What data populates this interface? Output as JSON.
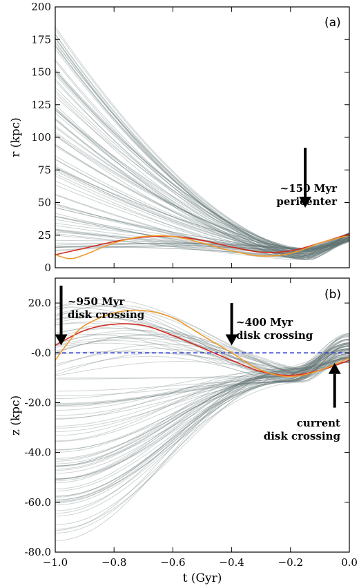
{
  "chart_data": [
    {
      "panel": "(a)",
      "type": "line",
      "xlim": [
        -1.0,
        0.0
      ],
      "ylim": [
        0,
        200
      ],
      "ylabel": "r (kpc)",
      "xticks": [
        -1.0,
        -0.8,
        -0.6,
        -0.4,
        -0.2,
        0.0
      ],
      "yticks": [
        0,
        25,
        50,
        75,
        100,
        125,
        150,
        175,
        200
      ],
      "ytick_labels": [
        "0",
        "25",
        "50",
        "75",
        "100",
        "125",
        "150",
        "175",
        "200"
      ],
      "colors": {
        "ensemble": "#5f7272",
        "red": "#d42a1e",
        "orange": "#ef9a2a"
      },
      "ensemble": {
        "count": 90,
        "r_at_start_range": [
          9,
          185
        ],
        "r_min_time": -0.15,
        "r_min_range": [
          6,
          15
        ],
        "r_at_end_range": [
          20,
          27
        ]
      },
      "series": [
        {
          "color": "red",
          "x": [
            -1.0,
            -0.9,
            -0.8,
            -0.7,
            -0.6,
            -0.5,
            -0.4,
            -0.3,
            -0.2,
            -0.1,
            0.0
          ],
          "y": [
            10,
            15,
            20,
            23.5,
            24,
            21,
            16,
            12,
            13,
            19,
            26
          ]
        },
        {
          "color": "orange",
          "x": [
            -1.0,
            -0.95,
            -0.9,
            -0.8,
            -0.7,
            -0.6,
            -0.5,
            -0.4,
            -0.3,
            -0.2,
            -0.1,
            0.0
          ],
          "y": [
            10,
            7,
            10,
            19,
            24,
            24,
            19,
            13,
            9,
            11,
            19,
            25
          ]
        }
      ],
      "annotations": [
        {
          "text_lines": [
            "~150 Myr",
            "pericenter"
          ],
          "arrow_x": -0.15,
          "arrow_from_y": 92,
          "arrow_to_y": 46
        }
      ]
    },
    {
      "panel": "(b)",
      "type": "line",
      "xlim": [
        -1.0,
        0.0
      ],
      "ylim": [
        -80,
        30
      ],
      "xlabel": "t (Gyr)",
      "ylabel": "z (kpc)",
      "xticks": [
        -1.0,
        -0.8,
        -0.6,
        -0.4,
        -0.2,
        0.0
      ],
      "xtick_labels": [
        "−1.0",
        "−0.8",
        "−0.6",
        "−0.4",
        "−0.2",
        "0.0"
      ],
      "yticks": [
        20,
        0,
        -20,
        -40,
        -60,
        -80
      ],
      "ytick_labels": [
        "20.0",
        "-0.0",
        "-20.0",
        "-40.0",
        "-60.0",
        "-80.0"
      ],
      "colors": {
        "ensemble": "#5f7272",
        "red": "#d42a1e",
        "orange": "#ef9a2a",
        "zero_line": "#2233cc"
      },
      "reference_line": {
        "y": 0,
        "style": "dashed"
      },
      "ensemble": {
        "count": 90,
        "z_at_start_range": [
          -76,
          20
        ],
        "z_min_time": -0.2,
        "z_at_end_range": [
          -4,
          8
        ]
      },
      "series": [
        {
          "color": "red",
          "x": [
            -1.0,
            -0.9,
            -0.8,
            -0.7,
            -0.6,
            -0.5,
            -0.4,
            -0.3,
            -0.2,
            -0.1,
            0.0
          ],
          "y": [
            3,
            9,
            11.5,
            11,
            7,
            2,
            -3,
            -7.5,
            -9,
            -7,
            -3
          ]
        },
        {
          "color": "orange",
          "x": [
            -1.0,
            -0.95,
            -0.9,
            -0.8,
            -0.7,
            -0.6,
            -0.5,
            -0.4,
            -0.3,
            -0.2,
            -0.1,
            0.0
          ],
          "y": [
            -3,
            5,
            11,
            16,
            17,
            14,
            7,
            0,
            -7,
            -9.5,
            -7,
            -2
          ]
        }
      ],
      "annotations": [
        {
          "text_lines": [
            "~950 Myr",
            "disk crossing"
          ],
          "arrow_x": -0.98,
          "arrow_from_y": 27,
          "arrow_to_y": 3
        },
        {
          "text_lines": [
            "~400 Myr",
            "disk crossing"
          ],
          "arrow_x": -0.4,
          "arrow_from_y": 20,
          "arrow_to_y": 3
        },
        {
          "text_lines": [
            "current",
            "disk crossing"
          ],
          "arrow_x": -0.05,
          "arrow_from_y": -22,
          "arrow_to_y": -4
        }
      ]
    }
  ]
}
